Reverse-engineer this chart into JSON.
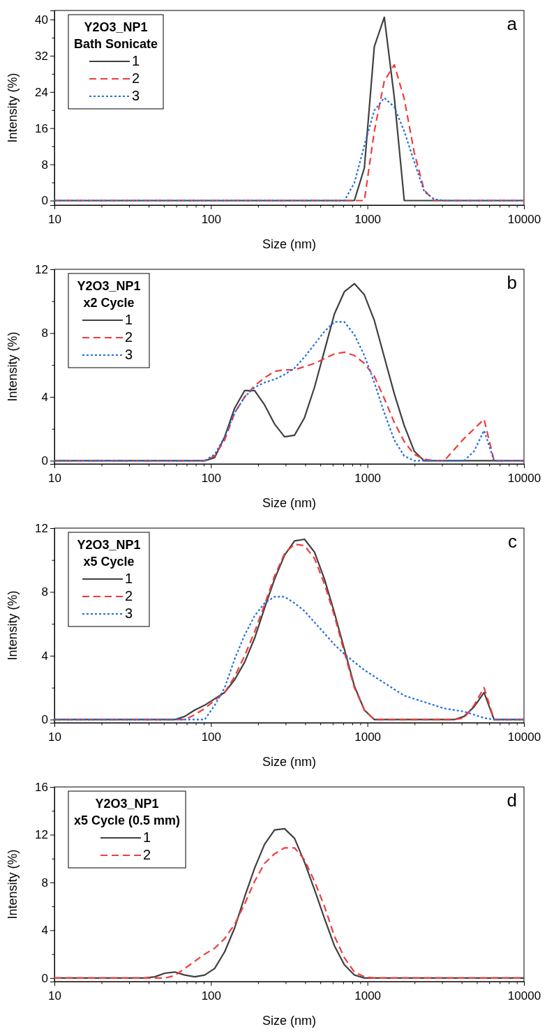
{
  "chart_data": [
    {
      "type": "line",
      "title": "a",
      "xlabel": "Size (nm)",
      "ylabel": "Intensity (%)",
      "legend_title": "Y2O3_NP1\nBath Sonicate",
      "legend": "top left",
      "log": "x",
      "xlim": [
        10,
        10000
      ],
      "ylim": [
        -1,
        42
      ],
      "xticks": [
        10,
        {
          "value": 20,
          "label": null
        },
        {
          "value": 30,
          "label": null
        },
        {
          "value": 40,
          "label": null
        },
        {
          "value": 50,
          "label": null
        },
        {
          "value": 60,
          "label": null
        },
        {
          "value": 70,
          "label": null
        },
        {
          "value": 80,
          "label": null
        },
        {
          "value": 90,
          "label": null
        },
        100,
        {
          "value": 200,
          "label": null
        },
        {
          "value": 300,
          "label": null
        },
        {
          "value": 400,
          "label": null
        },
        {
          "value": 500,
          "label": null
        },
        {
          "value": 600,
          "label": null
        },
        {
          "value": 700,
          "label": null
        },
        {
          "value": 800,
          "label": null
        },
        {
          "value": 900,
          "label": null
        },
        1000,
        {
          "value": 2000,
          "label": null
        },
        {
          "value": 3000,
          "label": null
        },
        {
          "value": 4000,
          "label": null
        },
        {
          "value": 5000,
          "label": null
        },
        {
          "value": 6000,
          "label": null
        },
        {
          "value": 7000,
          "label": null
        },
        {
          "value": 8000,
          "label": null
        },
        {
          "value": 9000,
          "label": null
        },
        10000
      ],
      "yticks": [
        0,
        {
          "value": 4,
          "label": null
        },
        8,
        {
          "value": 12,
          "label": null
        },
        16,
        {
          "value": 20,
          "label": null
        },
        24,
        {
          "value": 28,
          "label": null
        },
        32,
        {
          "value": 36,
          "label": null
        },
        40
      ],
      "x": [
        10,
        712.4,
        825,
        955.4,
        1106,
        1281,
        1484,
        1718,
        1990,
        2305,
        2669,
        3091,
        10000
      ],
      "series": [
        {
          "name": "1",
          "color": "#404040",
          "line_style": "solid",
          "values": [
            0,
            0,
            0,
            7.2,
            34,
            40.5,
            22.8,
            0,
            0,
            0,
            0,
            0,
            0
          ]
        },
        {
          "name": "2",
          "color": "#f03c3c",
          "line_style": "dashed",
          "values": [
            0,
            0,
            0,
            0,
            15.3,
            26.4,
            30,
            22.5,
            10.6,
            2.3,
            0,
            0,
            0
          ]
        },
        {
          "name": "3",
          "color": "#1f6fe0",
          "line_style": "dotted",
          "values": [
            0,
            0,
            3.9,
            12.2,
            19.9,
            22.7,
            20.7,
            15.3,
            8.6,
            2,
            0.3,
            0,
            0
          ]
        }
      ]
    },
    {
      "type": "line",
      "title": "b",
      "xlabel": "Size (nm)",
      "ylabel": "Intensity (%)",
      "legend_title": "Y2O3_NP1\nx2 Cycle",
      "legend": "top left",
      "log": "x",
      "xlim": [
        10,
        10000
      ],
      "ylim": [
        -0.2,
        12
      ],
      "xticks": [
        10,
        {
          "value": 20,
          "label": null
        },
        {
          "value": 30,
          "label": null
        },
        {
          "value": 40,
          "label": null
        },
        {
          "value": 50,
          "label": null
        },
        {
          "value": 60,
          "label": null
        },
        {
          "value": 70,
          "label": null
        },
        {
          "value": 80,
          "label": null
        },
        {
          "value": 90,
          "label": null
        },
        100,
        {
          "value": 200,
          "label": null
        },
        {
          "value": 300,
          "label": null
        },
        {
          "value": 400,
          "label": null
        },
        {
          "value": 500,
          "label": null
        },
        {
          "value": 600,
          "label": null
        },
        {
          "value": 700,
          "label": null
        },
        {
          "value": 800,
          "label": null
        },
        {
          "value": 900,
          "label": null
        },
        1000,
        {
          "value": 2000,
          "label": null
        },
        {
          "value": 3000,
          "label": null
        },
        {
          "value": 4000,
          "label": null
        },
        {
          "value": 5000,
          "label": null
        },
        {
          "value": 6000,
          "label": null
        },
        {
          "value": 7000,
          "label": null
        },
        {
          "value": 8000,
          "label": null
        },
        {
          "value": 9000,
          "label": null
        },
        10000
      ],
      "yticks": [
        0,
        {
          "value": 2,
          "label": null
        },
        4,
        {
          "value": 6,
          "label": null
        },
        8,
        {
          "value": 10,
          "label": null
        },
        12
      ],
      "x": [
        10,
        91.28,
        105.7,
        122.4,
        141.8,
        164.2,
        190.1,
        220.2,
        255,
        295.3,
        342,
        396.1,
        458.7,
        531.2,
        615.1,
        712.4,
        825,
        955.4,
        1106,
        1281,
        1484,
        1718,
        1990,
        2305,
        2669,
        3091,
        3580,
        4145,
        4801,
        5560,
        6439,
        10000
      ],
      "series": [
        {
          "name": "1",
          "color": "#404040",
          "line_style": "solid",
          "values": [
            0,
            0,
            0.2,
            1.5,
            3.3,
            4.4,
            4.4,
            3.5,
            2.3,
            1.5,
            1.6,
            2.7,
            4.6,
            6.9,
            9.2,
            10.6,
            11.1,
            10.4,
            8.8,
            6.5,
            4.2,
            2.2,
            0.6,
            0,
            0,
            0,
            0,
            0,
            0,
            0,
            0,
            0
          ]
        },
        {
          "name": "2",
          "color": "#f03c3c",
          "line_style": "dashed",
          "values": [
            0,
            0,
            0.3,
            1.3,
            3.0,
            4.0,
            4.7,
            5.2,
            5.6,
            5.7,
            5.7,
            5.9,
            6.1,
            6.4,
            6.7,
            6.8,
            6.6,
            6.1,
            5.3,
            3.9,
            2.4,
            1.2,
            0.4,
            0.1,
            0,
            0,
            0.7,
            1.4,
            2.0,
            2.6,
            0,
            0
          ]
        },
        {
          "name": "3",
          "color": "#1f6fe0",
          "line_style": "dotted",
          "values": [
            0,
            0,
            0.4,
            1.5,
            3.0,
            4.0,
            4.6,
            4.9,
            5.1,
            5.4,
            5.8,
            6.5,
            7.3,
            8.1,
            8.7,
            8.7,
            7.9,
            6.6,
            4.9,
            3.0,
            1.3,
            0.3,
            0,
            0,
            0,
            0,
            0,
            0,
            0.6,
            1.9,
            0,
            0
          ]
        }
      ]
    },
    {
      "type": "line",
      "title": "c",
      "xlabel": "Size (nm)",
      "ylabel": "Intensity (%)",
      "legend_title": "Y2O3_NP1\nx5 Cycle",
      "legend": "top left",
      "log": "x",
      "xlim": [
        10,
        10000
      ],
      "ylim": [
        -0.2,
        12
      ],
      "xticks": [
        10,
        {
          "value": 20,
          "label": null
        },
        {
          "value": 30,
          "label": null
        },
        {
          "value": 40,
          "label": null
        },
        {
          "value": 50,
          "label": null
        },
        {
          "value": 60,
          "label": null
        },
        {
          "value": 70,
          "label": null
        },
        {
          "value": 80,
          "label": null
        },
        {
          "value": 90,
          "label": null
        },
        100,
        {
          "value": 200,
          "label": null
        },
        {
          "value": 300,
          "label": null
        },
        {
          "value": 400,
          "label": null
        },
        {
          "value": 500,
          "label": null
        },
        {
          "value": 600,
          "label": null
        },
        {
          "value": 700,
          "label": null
        },
        {
          "value": 800,
          "label": null
        },
        {
          "value": 900,
          "label": null
        },
        1000,
        {
          "value": 2000,
          "label": null
        },
        {
          "value": 3000,
          "label": null
        },
        {
          "value": 4000,
          "label": null
        },
        {
          "value": 5000,
          "label": null
        },
        {
          "value": 6000,
          "label": null
        },
        {
          "value": 7000,
          "label": null
        },
        {
          "value": 8000,
          "label": null
        },
        {
          "value": 9000,
          "label": null
        },
        10000
      ],
      "yticks": [
        0,
        {
          "value": 2,
          "label": null
        },
        4,
        {
          "value": 6,
          "label": null
        },
        8,
        {
          "value": 10,
          "label": null
        },
        12
      ],
      "x": [
        10,
        58.77,
        68.06,
        78.82,
        91.28,
        105.7,
        122.4,
        141.8,
        164.2,
        190.1,
        220.2,
        255,
        295.3,
        342,
        396.1,
        458.7,
        531.2,
        615.1,
        712.4,
        825,
        955.4,
        1106,
        1281,
        1484,
        1718,
        1990,
        2305,
        2669,
        3091,
        3580,
        4145,
        4801,
        5560,
        6439,
        10000
      ],
      "series": [
        {
          "name": "1",
          "color": "#404040",
          "line_style": "solid",
          "values": [
            0,
            0,
            0.2,
            0.6,
            0.9,
            1.3,
            1.7,
            2.5,
            3.6,
            5.1,
            7.0,
            8.8,
            10.3,
            11.2,
            11.3,
            10.5,
            8.8,
            6.7,
            4.4,
            2.1,
            0.6,
            0,
            0,
            0,
            0,
            0,
            0,
            0,
            0,
            0,
            0.2,
            0.8,
            1.7,
            0,
            0
          ]
        },
        {
          "name": "2",
          "color": "#f03c3c",
          "line_style": "dashed",
          "values": [
            0,
            0,
            0,
            0.3,
            0.7,
            1.2,
            1.7,
            2.7,
            4.0,
            5.5,
            7.2,
            9.0,
            10.4,
            11.0,
            10.9,
            10.1,
            8.5,
            6.5,
            4.2,
            2.0,
            0.6,
            0,
            0,
            0,
            0,
            0,
            0,
            0,
            0,
            0,
            0.1,
            0.9,
            2.0,
            0,
            0
          ]
        },
        {
          "name": "3",
          "color": "#1f6fe0",
          "line_style": "dotted",
          "values": [
            0,
            0,
            0,
            0,
            0,
            0.9,
            2.0,
            3.8,
            5.3,
            6.5,
            7.3,
            7.7,
            7.7,
            7.3,
            6.8,
            6.1,
            5.4,
            4.7,
            4.1,
            3.6,
            3.1,
            2.7,
            2.3,
            1.9,
            1.5,
            1.3,
            1.1,
            0.9,
            0.7,
            0.6,
            0.5,
            0.3,
            0.1,
            0,
            0
          ]
        }
      ]
    },
    {
      "type": "line",
      "title": "d",
      "xlabel": "Size (nm)",
      "ylabel": "Intensity (%)",
      "legend_title": "Y2O3_NP1\nx5 Cycle (0.5 mm)",
      "legend": "top left",
      "log": "x",
      "xlim": [
        10,
        10000
      ],
      "ylim": [
        -0.3,
        16
      ],
      "xticks": [
        10,
        {
          "value": 20,
          "label": null
        },
        {
          "value": 30,
          "label": null
        },
        {
          "value": 40,
          "label": null
        },
        {
          "value": 50,
          "label": null
        },
        {
          "value": 60,
          "label": null
        },
        {
          "value": 70,
          "label": null
        },
        {
          "value": 80,
          "label": null
        },
        {
          "value": 90,
          "label": null
        },
        100,
        {
          "value": 200,
          "label": null
        },
        {
          "value": 300,
          "label": null
        },
        {
          "value": 400,
          "label": null
        },
        {
          "value": 500,
          "label": null
        },
        {
          "value": 600,
          "label": null
        },
        {
          "value": 700,
          "label": null
        },
        {
          "value": 800,
          "label": null
        },
        {
          "value": 900,
          "label": null
        },
        1000,
        {
          "value": 2000,
          "label": null
        },
        {
          "value": 3000,
          "label": null
        },
        {
          "value": 4000,
          "label": null
        },
        {
          "value": 5000,
          "label": null
        },
        {
          "value": 6000,
          "label": null
        },
        {
          "value": 7000,
          "label": null
        },
        {
          "value": 8000,
          "label": null
        },
        {
          "value": 9000,
          "label": null
        },
        10000
      ],
      "yticks": [
        0,
        {
          "value": 2,
          "label": null
        },
        4,
        {
          "value": 6,
          "label": null
        },
        8,
        {
          "value": 10,
          "label": null
        },
        12,
        {
          "value": 14,
          "label": null
        },
        16
      ],
      "x": [
        10,
        37.84,
        43.82,
        50.75,
        58.77,
        68.06,
        78.82,
        91.28,
        105.7,
        122.4,
        141.8,
        164.2,
        190.1,
        220.2,
        255,
        295.3,
        342,
        396.1,
        458.7,
        531.2,
        615.1,
        712.4,
        825,
        955.4,
        1106,
        10000
      ],
      "series": [
        {
          "name": "1",
          "color": "#404040",
          "line_style": "solid",
          "values": [
            0,
            0,
            0.1,
            0.4,
            0.5,
            0.25,
            0.1,
            0.25,
            0.8,
            2.2,
            4.2,
            6.8,
            9.2,
            11.2,
            12.4,
            12.5,
            11.7,
            9.7,
            7.4,
            5.0,
            2.7,
            1.1,
            0.25,
            0,
            0,
            0
          ]
        },
        {
          "name": "2",
          "color": "#f03c3c",
          "line_style": "dashed",
          "values": [
            0,
            0,
            0,
            0,
            0.2,
            0.8,
            1.4,
            2.0,
            2.5,
            3.3,
            4.5,
            6.2,
            8.1,
            9.6,
            10.4,
            10.9,
            10.9,
            9.9,
            8.1,
            6.0,
            3.5,
            1.7,
            0.5,
            0.1,
            0,
            0
          ]
        }
      ]
    }
  ]
}
